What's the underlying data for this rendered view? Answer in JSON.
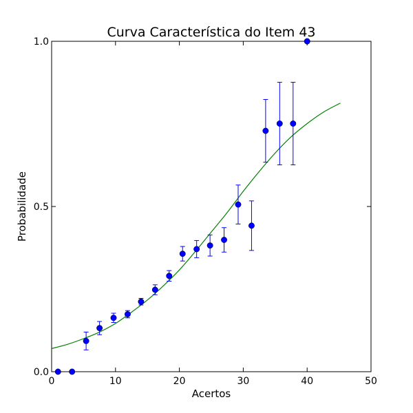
{
  "chart_data": {
    "type": "scatter",
    "title": "Curva Característica do Item 43",
    "xlabel": "Acertos",
    "ylabel": "Probabilidade",
    "xlim": [
      0,
      50
    ],
    "ylim": [
      0,
      1
    ],
    "x_ticks": [
      0,
      10,
      20,
      30,
      40,
      50
    ],
    "x_tick_labels": [
      "0",
      "10",
      "20",
      "30",
      "40",
      "50"
    ],
    "y_ticks": [
      0,
      0.5,
      1
    ],
    "y_tick_labels": [
      "0.0",
      "0.5",
      "1.0"
    ],
    "grid": false,
    "colors": {
      "points": "#0000ff",
      "curve": "#008000"
    },
    "points": [
      {
        "x": 1.0,
        "y": 0.0,
        "err": 0
      },
      {
        "x": 3.2,
        "y": 0.0,
        "err": 0
      },
      {
        "x": 5.4,
        "y": 0.093,
        "err": 0.027
      },
      {
        "x": 7.5,
        "y": 0.132,
        "err": 0.02
      },
      {
        "x": 9.7,
        "y": 0.163,
        "err": 0.014
      },
      {
        "x": 11.9,
        "y": 0.174,
        "err": 0.011
      },
      {
        "x": 14.0,
        "y": 0.212,
        "err": 0.01
      },
      {
        "x": 16.2,
        "y": 0.248,
        "err": 0.015
      },
      {
        "x": 18.4,
        "y": 0.29,
        "err": 0.016
      },
      {
        "x": 20.5,
        "y": 0.357,
        "err": 0.022
      },
      {
        "x": 22.7,
        "y": 0.371,
        "err": 0.026
      },
      {
        "x": 24.8,
        "y": 0.382,
        "err": 0.032
      },
      {
        "x": 27.0,
        "y": 0.399,
        "err": 0.037
      },
      {
        "x": 29.2,
        "y": 0.506,
        "err": 0.059
      },
      {
        "x": 31.3,
        "y": 0.442,
        "err": 0.075
      },
      {
        "x": 33.5,
        "y": 0.729,
        "err": 0.095
      },
      {
        "x": 35.7,
        "y": 0.751,
        "err": 0.125
      },
      {
        "x": 37.8,
        "y": 0.751,
        "err": 0.125
      },
      {
        "x": 40.0,
        "y": 1.0,
        "err": 0
      }
    ],
    "curve": {
      "x": [
        0,
        2.5,
        5,
        7.5,
        10,
        12.5,
        15,
        17.5,
        20,
        22.5,
        25,
        27.5,
        30,
        32.5,
        35,
        37.5,
        40,
        42.5,
        45.2
      ],
      "y": [
        0.07,
        0.083,
        0.1,
        0.12,
        0.146,
        0.18,
        0.217,
        0.26,
        0.308,
        0.364,
        0.423,
        0.482,
        0.546,
        0.606,
        0.662,
        0.711,
        0.751,
        0.785,
        0.813
      ]
    }
  }
}
